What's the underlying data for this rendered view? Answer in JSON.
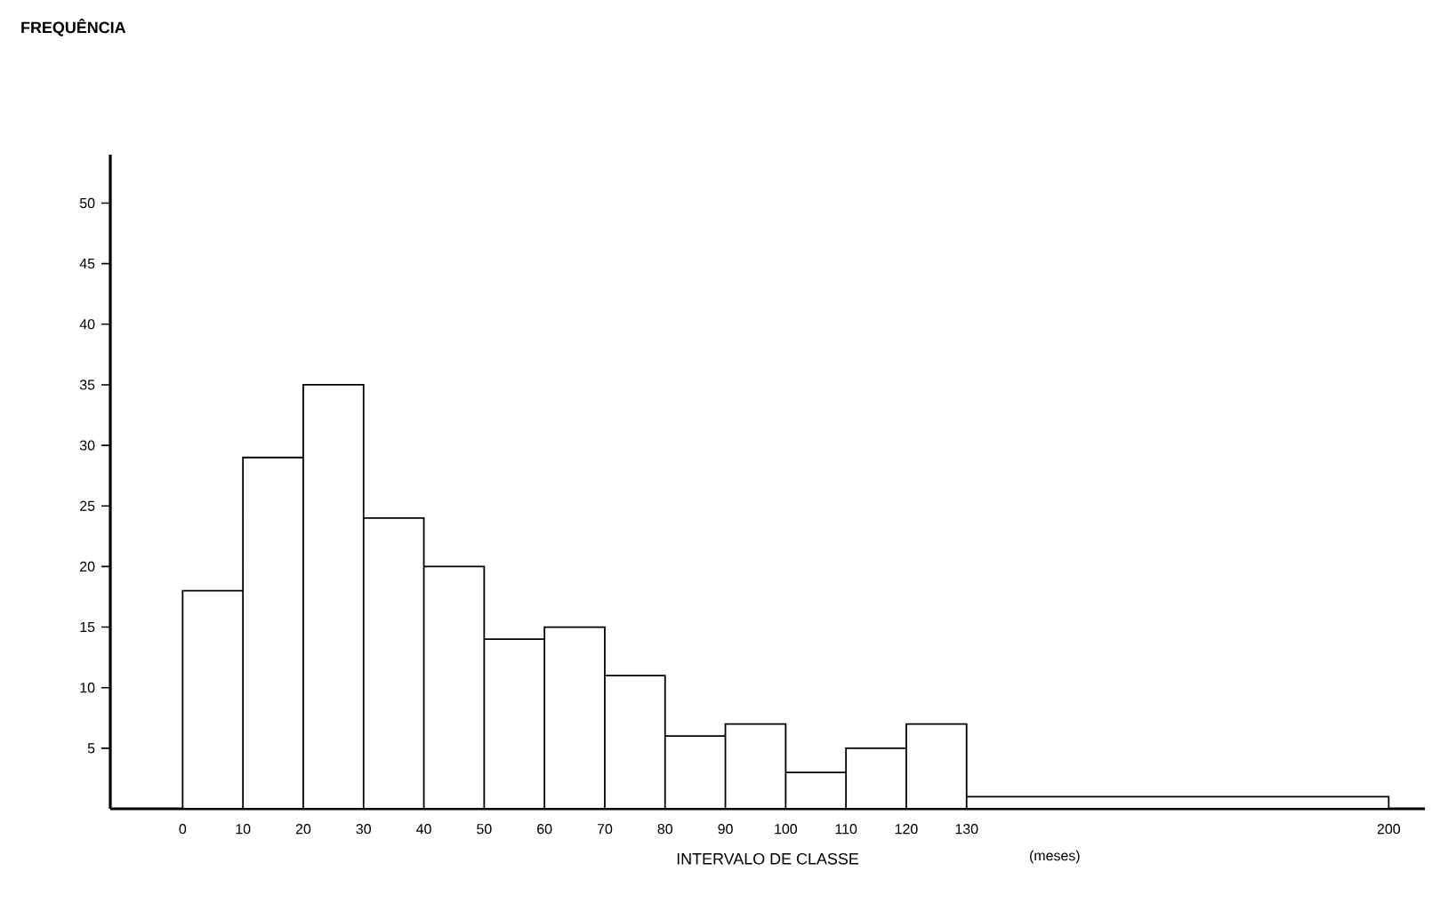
{
  "chart_data": {
    "type": "histogram",
    "title": "FREQUÊNCIA",
    "xlabel": "INTERVALO DE CLASSE",
    "annotations": [
      "(meses)"
    ],
    "bins": [
      0,
      10,
      20,
      30,
      40,
      50,
      60,
      70,
      80,
      90,
      100,
      110,
      120,
      130,
      200
    ],
    "values": [
      18,
      29,
      35,
      24,
      20,
      14,
      15,
      11,
      6,
      7,
      3,
      5,
      7,
      1
    ],
    "xlim": [
      -12,
      206
    ],
    "ylim": [
      0,
      54
    ],
    "xticks": [
      0,
      10,
      20,
      30,
      40,
      50,
      60,
      70,
      80,
      90,
      100,
      110,
      120,
      130,
      200
    ],
    "yticks": [
      5,
      10,
      15,
      20,
      25,
      30,
      35,
      40,
      45,
      50
    ]
  }
}
